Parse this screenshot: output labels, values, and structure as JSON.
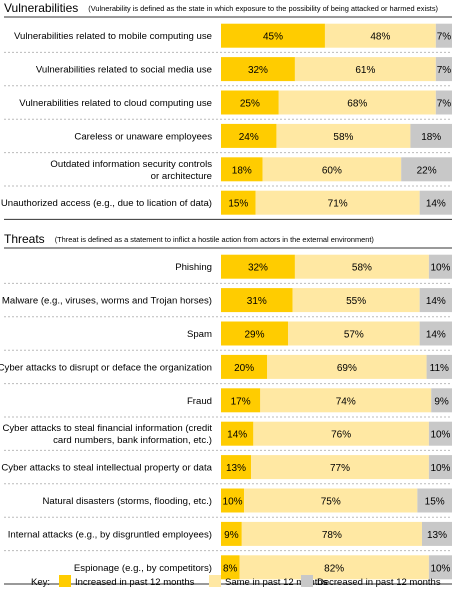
{
  "chart_data": {
    "type": "bar",
    "stacked": true,
    "orientation": "horizontal",
    "colors": {
      "increased": "#FFCC00",
      "same": "#FFE8A3",
      "decreased": "#C8C8C8",
      "divider": "#BBBBBB"
    },
    "sections": [
      {
        "title": "Vulnerabilities",
        "subtitle": "(Vulnerability is defined as the state in which exposure to the possibility of being attacked or harmed exists)",
        "rows": [
          {
            "label": [
              "Vulnerabilities related to mobile computing use"
            ],
            "values": [
              45,
              48,
              7
            ]
          },
          {
            "label": [
              "Vulnerabilities related to social media use"
            ],
            "values": [
              32,
              61,
              7
            ]
          },
          {
            "label": [
              "Vulnerabilities related to cloud computing use"
            ],
            "values": [
              25,
              68,
              7
            ]
          },
          {
            "label": [
              "Careless or unaware employees"
            ],
            "values": [
              24,
              58,
              18
            ]
          },
          {
            "label": [
              "Outdated information security controls",
              "or architecture"
            ],
            "values": [
              18,
              60,
              22
            ]
          },
          {
            "label": [
              "Unauthorized access (e.g., due to lication of data)"
            ],
            "values": [
              15,
              71,
              14
            ]
          }
        ]
      },
      {
        "title": "Threats",
        "subtitle": "(Threat is defined as a statement to inflict a hostile action from actors in the external environment)",
        "rows": [
          {
            "label": [
              "Phishing"
            ],
            "values": [
              32,
              58,
              10
            ]
          },
          {
            "label": [
              "Malware (e.g., viruses, worms and Trojan horses)"
            ],
            "values": [
              31,
              55,
              14
            ]
          },
          {
            "label": [
              "Spam"
            ],
            "values": [
              29,
              57,
              14
            ]
          },
          {
            "label": [
              "Cyber attacks to disrupt or deface the organization"
            ],
            "values": [
              20,
              69,
              11
            ]
          },
          {
            "label": [
              "Fraud"
            ],
            "values": [
              17,
              74,
              9
            ]
          },
          {
            "label": [
              "Cyber attacks to steal financial information (credit",
              "card numbers, bank information, etc.)"
            ],
            "values": [
              14,
              76,
              10
            ]
          },
          {
            "label": [
              "Cyber attacks to steal intellectual property or data"
            ],
            "values": [
              13,
              77,
              10
            ]
          },
          {
            "label": [
              "Natural disasters (storms, flooding, etc.)"
            ],
            "values": [
              10,
              75,
              15
            ]
          },
          {
            "label": [
              "Internal attacks (e.g., by disgruntled employees)"
            ],
            "values": [
              9,
              78,
              13
            ]
          },
          {
            "label": [
              "Espionage (e.g., by competitors)"
            ],
            "values": [
              8,
              82,
              10
            ]
          }
        ]
      }
    ],
    "series": [
      {
        "name": "Increased in past 12 months"
      },
      {
        "name": "Same in past 12 months"
      },
      {
        "name": "Decreased in past 12 months"
      }
    ],
    "legend": {
      "key_label": "Key:",
      "position": "bottom"
    },
    "value_suffix": "%"
  }
}
